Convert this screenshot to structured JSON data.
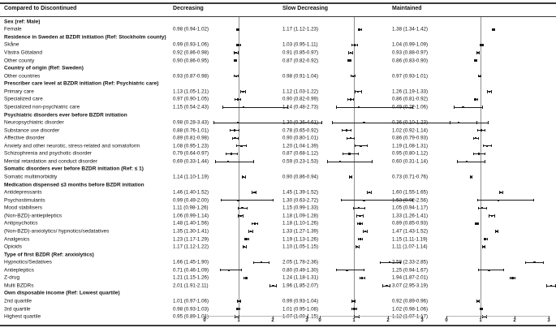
{
  "colors": {
    "text": "#111111",
    "marker": "#1a1a1a",
    "ref_line": "#8f8f8f",
    "rule": "#3a3a3a"
  },
  "chart_data": {
    "type": "forest",
    "title": "Compared to Discontinued",
    "panels": [
      "Decreasing",
      "Slow Decreasing",
      "Maintained"
    ],
    "x_ticks": [
      0,
      1,
      2,
      3
    ],
    "reference_line": 1,
    "value_format": "est (lo-hi)",
    "rows": [
      {
        "label": "Sex (ref: Male)",
        "section": true
      },
      {
        "label": "Female",
        "d": [
          0.98,
          0.94,
          1.02
        ],
        "s": [
          1.17,
          1.12,
          1.23
        ],
        "m": [
          1.38,
          1.34,
          1.42
        ]
      },
      {
        "label": "Residence in Sweden at BZDR initiation (Ref: Stockholm county)",
        "section": true
      },
      {
        "label": "Skåne",
        "d": [
          0.99,
          0.93,
          1.06
        ],
        "s": [
          1.03,
          0.95,
          1.11
        ],
        "m": [
          1.04,
          0.99,
          1.09
        ]
      },
      {
        "label": "Västra Götaland",
        "d": [
          0.92,
          0.86,
          0.98
        ],
        "s": [
          0.91,
          0.85,
          0.97
        ],
        "m": [
          0.93,
          0.88,
          0.97
        ]
      },
      {
        "label": "Other county",
        "d": [
          0.9,
          0.86,
          0.95
        ],
        "s": [
          0.87,
          0.82,
          0.92
        ],
        "m": [
          0.86,
          0.83,
          0.9
        ]
      },
      {
        "label": "Country of origin (Ref: Sweden)",
        "section": true
      },
      {
        "label": "Other countries",
        "d": [
          0.93,
          0.87,
          0.98
        ],
        "s": [
          0.98,
          0.91,
          1.04
        ],
        "m": [
          0.97,
          0.93,
          1.01
        ]
      },
      {
        "label": "Prescriber care level at BZDR initiation (Ref: Psychiatric care)",
        "section": true
      },
      {
        "label": "Primary care",
        "d": [
          1.13,
          1.05,
          1.21
        ],
        "s": [
          1.12,
          1.03,
          1.22
        ],
        "m": [
          1.26,
          1.19,
          1.33
        ]
      },
      {
        "label": "Specialized care",
        "d": [
          0.97,
          0.9,
          1.05
        ],
        "s": [
          0.9,
          0.82,
          0.99
        ],
        "m": [
          0.86,
          0.81,
          0.92
        ]
      },
      {
        "label": "Specialized non-psychiatric care",
        "d": [
          1.15,
          0.54,
          2.43
        ],
        "s": [
          1.14,
          0.48,
          2.73
        ],
        "m": [
          0.49,
          0.22,
          1.06
        ]
      },
      {
        "label": "Psychiatric disorders ever before BZDR initiation",
        "section": true
      },
      {
        "label": "Neuropsychiatric disorder",
        "d": [
          0.98,
          0.28,
          3.43
        ],
        "s": [
          1.3,
          0.36,
          4.61
        ],
        "m": [
          0.36,
          0.1,
          1.23
        ]
      },
      {
        "label": "Substance use disorder",
        "d": [
          0.88,
          0.76,
          1.01
        ],
        "s": [
          0.78,
          0.65,
          0.92
        ],
        "m": [
          1.02,
          0.92,
          1.14
        ]
      },
      {
        "label": "Affective disorder",
        "d": [
          0.89,
          0.81,
          0.98
        ],
        "s": [
          0.9,
          0.8,
          1.01
        ],
        "m": [
          0.86,
          0.79,
          0.93
        ]
      },
      {
        "label": "Anxiety and other neurotic, stress-related and somatoform",
        "d": [
          1.08,
          0.95,
          1.23
        ],
        "s": [
          1.2,
          1.04,
          1.39
        ],
        "m": [
          1.19,
          1.08,
          1.31
        ]
      },
      {
        "label": "Schizophrenia and psychotic disorder",
        "d": [
          0.79,
          0.64,
          0.97
        ],
        "s": [
          0.87,
          0.68,
          1.12
        ],
        "m": [
          0.95,
          0.8,
          1.12
        ]
      },
      {
        "label": "Mental retardation and conduct disorder",
        "d": [
          0.69,
          0.33,
          1.44
        ],
        "s": [
          0.59,
          0.23,
          1.53
        ],
        "m": [
          0.6,
          0.31,
          1.14
        ]
      },
      {
        "label": "Somatic disorders ever before BZDR initiation (Ref: ≤ 1)",
        "section": true
      },
      {
        "label": "Somatic multimorbidity",
        "d": [
          1.14,
          1.1,
          1.19
        ],
        "s": [
          0.9,
          0.86,
          0.94
        ],
        "m": [
          0.73,
          0.71,
          0.76
        ]
      },
      {
        "label": "Medication dispensed ≤3 months before BZDR initiation",
        "section": true
      },
      {
        "label": "Antidepressants",
        "d": [
          1.46,
          1.4,
          1.52
        ],
        "s": [
          1.45,
          1.39,
          1.52
        ],
        "m": [
          1.6,
          1.55,
          1.65
        ]
      },
      {
        "label": "Psychostimulants",
        "d": [
          0.99,
          0.49,
          2.0
        ],
        "s": [
          1.3,
          0.63,
          2.72
        ],
        "m": [
          1.53,
          0.92,
          2.56
        ]
      },
      {
        "label": "Mood stabilisers",
        "d": [
          1.11,
          0.98,
          1.26
        ],
        "s": [
          1.15,
          0.99,
          1.33
        ],
        "m": [
          1.05,
          0.94,
          1.17
        ]
      },
      {
        "label": "(Non-BZD)-antiepileptics",
        "d": [
          1.06,
          0.99,
          1.14
        ],
        "s": [
          1.18,
          1.09,
          1.28
        ],
        "m": [
          1.33,
          1.26,
          1.41
        ]
      },
      {
        "label": "Antipsychotics",
        "d": [
          1.48,
          1.4,
          1.56
        ],
        "s": [
          1.18,
          1.1,
          1.26
        ],
        "m": [
          0.89,
          0.85,
          0.93
        ]
      },
      {
        "label": "(Non-BZD)-anxiolytics/ hypnotics/sedatatives",
        "d": [
          1.35,
          1.3,
          1.41
        ],
        "s": [
          1.33,
          1.27,
          1.39
        ],
        "m": [
          1.47,
          1.43,
          1.52
        ]
      },
      {
        "label": "Analgesics",
        "d": [
          1.23,
          1.17,
          1.29
        ],
        "s": [
          1.19,
          1.13,
          1.26
        ],
        "m": [
          1.15,
          1.11,
          1.19
        ]
      },
      {
        "label": "Opioids",
        "d": [
          1.17,
          1.12,
          1.22
        ],
        "s": [
          1.1,
          1.05,
          1.15
        ],
        "m": [
          1.11,
          1.07,
          1.14
        ]
      },
      {
        "label": "Type of first BZDR (Ref: anxiolytics)",
        "section": true
      },
      {
        "label": "Hypnotics/Sedatives",
        "d": [
          1.66,
          1.45,
          1.9
        ],
        "s": [
          2.05,
          1.78,
          2.36
        ],
        "m": [
          2.58,
          2.33,
          2.85
        ]
      },
      {
        "label": "Antiepleptics",
        "d": [
          0.71,
          0.46,
          1.09
        ],
        "s": [
          0.8,
          0.49,
          1.3
        ],
        "m": [
          1.25,
          0.94,
          1.67
        ]
      },
      {
        "label": "Z-drug",
        "d": [
          1.21,
          1.15,
          1.26
        ],
        "s": [
          1.24,
          1.18,
          1.31
        ],
        "m": [
          1.94,
          1.87,
          2.01
        ]
      },
      {
        "label": "Multi BZDRs",
        "d": [
          2.01,
          1.91,
          2.11
        ],
        "s": [
          1.96,
          1.85,
          2.07
        ],
        "m": [
          3.07,
          2.95,
          3.19
        ]
      },
      {
        "label": "Own disposable income (Ref: Lowest quartile)",
        "section": true
      },
      {
        "label": "2nd quartile",
        "d": [
          1.01,
          0.97,
          1.06
        ],
        "s": [
          0.99,
          0.93,
          1.04
        ],
        "m": [
          0.92,
          0.89,
          0.96
        ]
      },
      {
        "label": "3rd quartile",
        "d": [
          0.98,
          0.93,
          1.03
        ],
        "s": [
          1.01,
          0.95,
          1.08
        ],
        "m": [
          1.02,
          0.98,
          1.06
        ]
      },
      {
        "label": "Highest quartile",
        "d": [
          0.95,
          0.89,
          1.01
        ],
        "s": [
          1.07,
          1.0,
          1.15
        ],
        "m": [
          1.12,
          1.07,
          1.17
        ]
      }
    ]
  }
}
